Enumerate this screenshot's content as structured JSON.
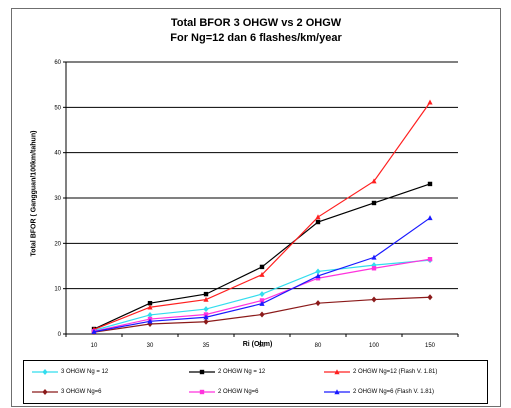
{
  "chart_data": {
    "type": "line",
    "title": "Total BFOR 3 OHGW vs 2 OHGW",
    "subtitle": "For Ng=12 dan 6 flashes/km/year",
    "xlabel": "Ri (Ohm)",
    "ylabel": "Total BFOR ( Gangguan/100km/tahun)",
    "categories": [
      "10",
      "30",
      "35",
      "50",
      "80",
      "100",
      "150"
    ],
    "ylim": [
      0,
      60
    ],
    "yticks": [
      "0",
      "10",
      "20",
      "30",
      "40",
      "50",
      "60"
    ],
    "grid": true,
    "legend_position": "bottom",
    "series": [
      {
        "name": "3 OHGW Ng = 12",
        "color": "#33ddee",
        "marker": "diamond",
        "values": [
          0.8,
          4.2,
          5.5,
          8.8,
          13.8,
          15.2,
          16.3
        ]
      },
      {
        "name": "2 OHGW Ng = 12",
        "color": "#000000",
        "marker": "square",
        "values": [
          1.1,
          6.8,
          8.8,
          14.8,
          24.7,
          28.9,
          33.1
        ]
      },
      {
        "name": "2 OHGW Ng=12 (Flash V. 1.81)",
        "color": "#ff2020",
        "marker": "triangle",
        "values": [
          1.0,
          5.9,
          7.6,
          13.1,
          25.8,
          33.7,
          51.1
        ]
      },
      {
        "name": "3 OHGW Ng=6",
        "color": "#8b1a1a",
        "marker": "diamond",
        "values": [
          0.4,
          2.2,
          2.7,
          4.3,
          6.8,
          7.6,
          8.1
        ]
      },
      {
        "name": "2 OHGW Ng=6",
        "color": "#ff33dd",
        "marker": "square",
        "values": [
          0.6,
          3.3,
          4.3,
          7.4,
          12.3,
          14.5,
          16.5
        ]
      },
      {
        "name": "2 OHGW Ng=6 (Flash V. 1.81)",
        "color": "#1a1aff",
        "marker": "triangle",
        "values": [
          0.5,
          2.8,
          3.7,
          6.7,
          12.8,
          16.9,
          25.6
        ]
      }
    ]
  }
}
